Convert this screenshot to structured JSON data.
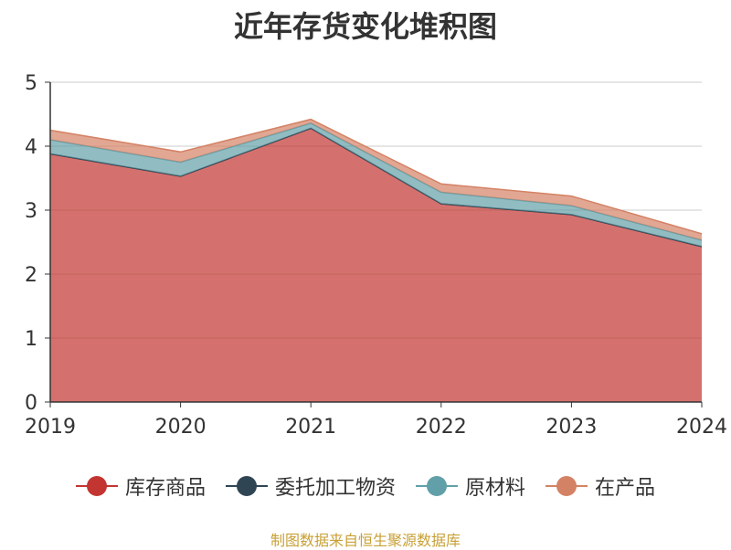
{
  "chart_data": {
    "type": "area",
    "stacked": true,
    "title": "近年存货变化堆积图",
    "ylabel": "",
    "xlabel": "",
    "categories": [
      "2019",
      "2020",
      "2021",
      "2022",
      "2023",
      "2024"
    ],
    "ylim": [
      0,
      5
    ],
    "yticks": [
      "0",
      "1",
      "2",
      "3",
      "4",
      "5"
    ],
    "grid": true,
    "legend_position": "bottom",
    "series": [
      {
        "name": "库存商品",
        "color": "#c23531",
        "values": [
          3.88,
          3.53,
          4.28,
          3.1,
          2.93,
          2.43
        ]
      },
      {
        "name": "委托加工物资",
        "color": "#2f4554",
        "values": [
          0.0,
          0.0,
          0.0,
          0.0,
          0.0,
          0.0
        ]
      },
      {
        "name": "原材料",
        "color": "#61a0a8",
        "values": [
          0.22,
          0.22,
          0.08,
          0.18,
          0.14,
          0.1
        ]
      },
      {
        "name": "在产品",
        "color": "#d48265",
        "values": [
          0.15,
          0.16,
          0.06,
          0.13,
          0.15,
          0.1
        ]
      }
    ]
  },
  "source_note": "制图数据来自恒生聚源数据库"
}
